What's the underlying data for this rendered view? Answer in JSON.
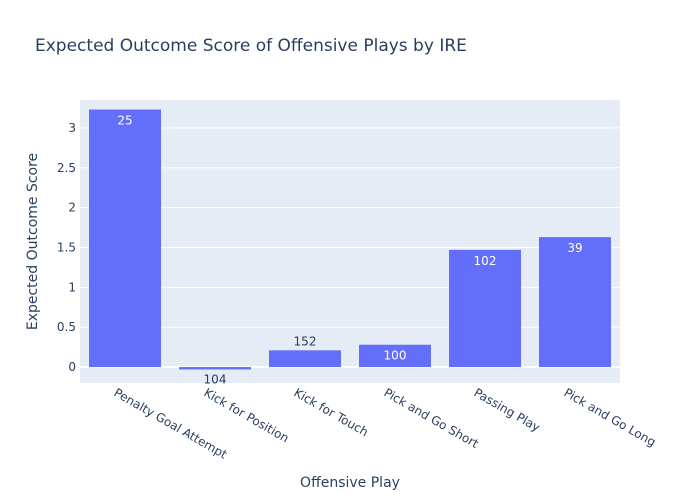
{
  "chart_data": {
    "type": "bar",
    "title": "Expected Outcome Score of Offensive Plays by IRE",
    "xlabel": "Offensive Play",
    "ylabel": "Expected Outcome Score",
    "categories": [
      "Penalty Goal Attempt",
      "Kick for Position",
      "Kick for Touch",
      "Pick and Go Short",
      "Passing Play",
      "Pick and Go Long"
    ],
    "values": [
      3.23,
      -0.03,
      0.21,
      0.28,
      1.47,
      1.63
    ],
    "data_labels": [
      "25",
      "104",
      "152",
      "100",
      "102",
      "39"
    ],
    "ylim": [
      -0.2,
      3.35
    ],
    "yticks": [
      0,
      0.5,
      1,
      1.5,
      2,
      2.5,
      3
    ],
    "ytick_labels": [
      "0",
      "0.5",
      "1",
      "1.5",
      "2",
      "2.5",
      "3"
    ],
    "grid": true,
    "legend": "none",
    "colors": {
      "bar": "#636efa",
      "plot_bg": "#e5ecf6",
      "text": "#2a3f5f"
    }
  }
}
